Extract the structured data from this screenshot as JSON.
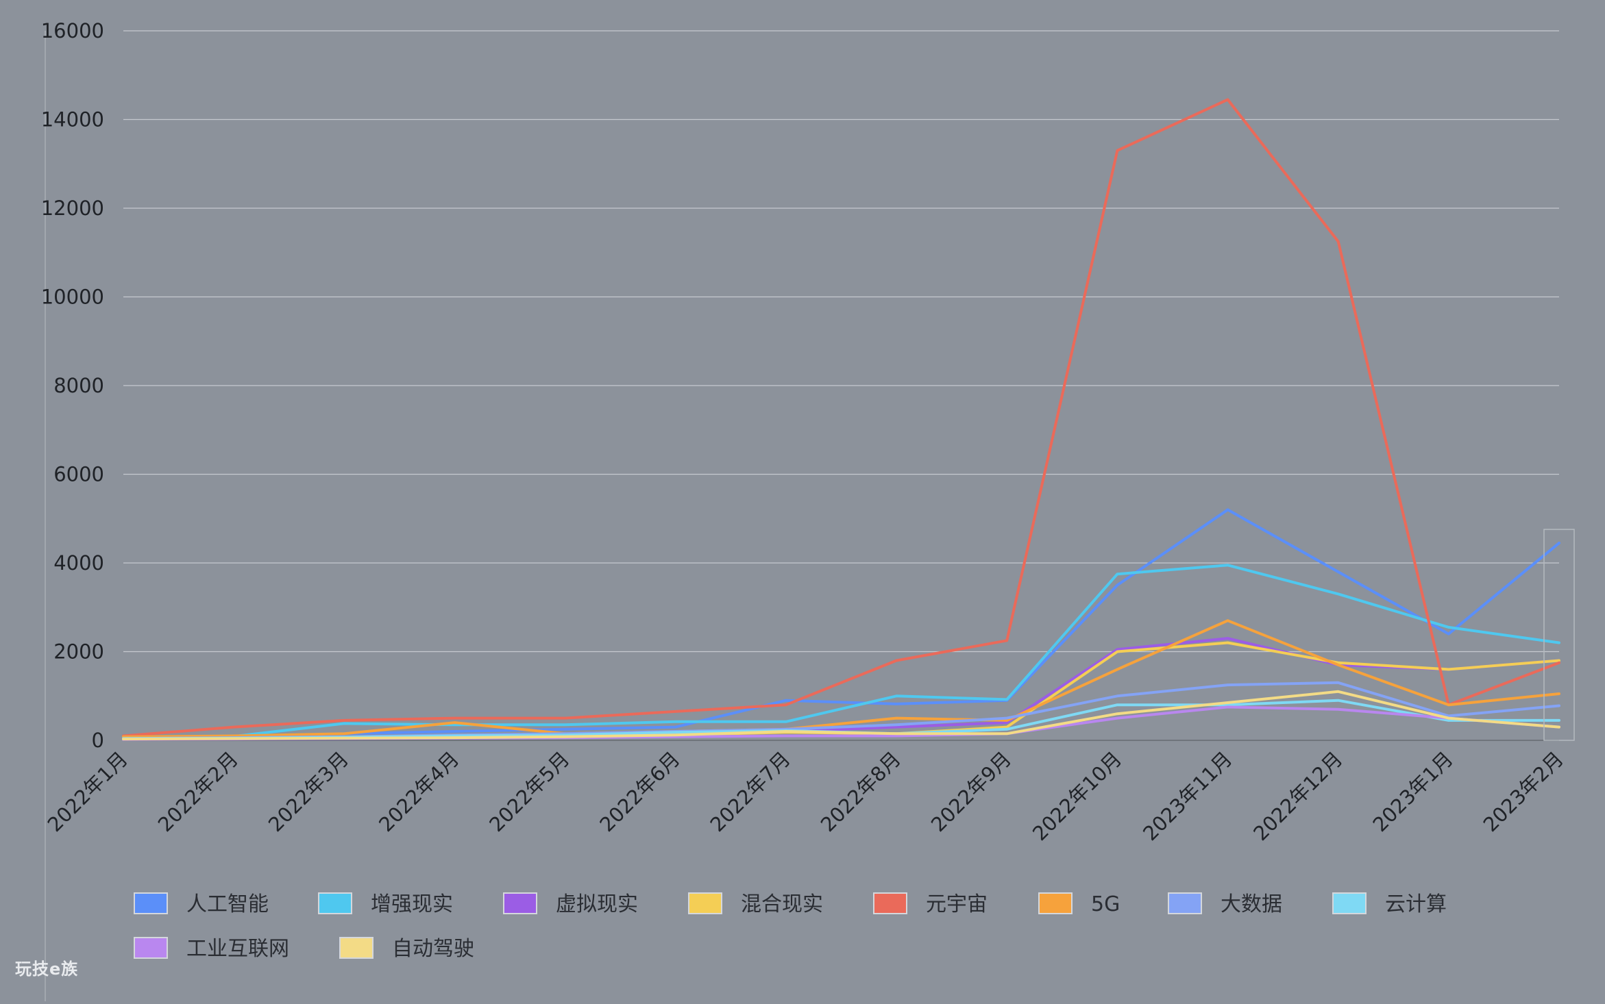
{
  "watermark": "玩技e族",
  "colors": {
    "background": "#8c929b",
    "grid": "#c5c9cf",
    "axis_text": "#1f2227",
    "legend_text": "#2a2d33"
  },
  "chart_data": {
    "type": "line",
    "title": "",
    "xlabel": "",
    "ylabel": "",
    "ylim": [
      0,
      16000
    ],
    "yticks": [
      0,
      2000,
      4000,
      6000,
      8000,
      10000,
      12000,
      14000,
      16000
    ],
    "grid": true,
    "legend_position": "bottom",
    "categories": [
      "2022年1月",
      "2022年2月",
      "2022年3月",
      "2022年4月",
      "2022年5月",
      "2022年6月",
      "2022年7月",
      "2022年8月",
      "2022年9月",
      "2022年10月",
      "2023年11月",
      "2022年12月",
      "2023年1月",
      "2023年2月"
    ],
    "series": [
      {
        "name": "人工智能",
        "color": "#5b8ff9",
        "values": [
          60,
          80,
          150,
          200,
          250,
          300,
          900,
          820,
          900,
          3500,
          5200,
          3800,
          2400,
          4450
        ]
      },
      {
        "name": "增强现实",
        "color": "#4fc8ef",
        "values": [
          50,
          90,
          380,
          350,
          350,
          420,
          420,
          1000,
          920,
          3750,
          3950,
          3300,
          2550,
          2200
        ]
      },
      {
        "name": "虚拟现实",
        "color": "#9b5de5",
        "values": [
          30,
          40,
          60,
          80,
          100,
          150,
          200,
          300,
          400,
          2050,
          2300,
          1700,
          1600,
          1800
        ]
      },
      {
        "name": "混合现实",
        "color": "#f4ce55",
        "values": [
          30,
          40,
          50,
          60,
          80,
          120,
          180,
          150,
          300,
          2000,
          2200,
          1750,
          1600,
          1800
        ]
      },
      {
        "name": "元宇宙",
        "color": "#ea6a5a",
        "values": [
          100,
          300,
          450,
          500,
          500,
          650,
          800,
          1800,
          2250,
          13300,
          14450,
          11250,
          800,
          1750
        ]
      },
      {
        "name": "5G",
        "color": "#f6a23c",
        "values": [
          80,
          100,
          150,
          400,
          150,
          200,
          250,
          500,
          450,
          1600,
          2700,
          1700,
          800,
          1050
        ]
      },
      {
        "name": "大数据",
        "color": "#84a3f5",
        "values": [
          40,
          60,
          80,
          120,
          150,
          200,
          250,
          350,
          500,
          1000,
          1250,
          1300,
          550,
          780
        ]
      },
      {
        "name": "云计算",
        "color": "#7fd9f4",
        "values": [
          40,
          50,
          70,
          100,
          120,
          180,
          220,
          150,
          250,
          800,
          800,
          900,
          450,
          450
        ]
      },
      {
        "name": "工业互联网",
        "color": "#b987ef",
        "values": [
          20,
          30,
          40,
          50,
          60,
          80,
          100,
          100,
          150,
          500,
          750,
          700,
          500,
          300
        ]
      },
      {
        "name": "自动驾驶",
        "color": "#f3db86",
        "values": [
          30,
          40,
          50,
          60,
          80,
          120,
          200,
          150,
          150,
          600,
          850,
          1100,
          500,
          300
        ]
      }
    ]
  }
}
